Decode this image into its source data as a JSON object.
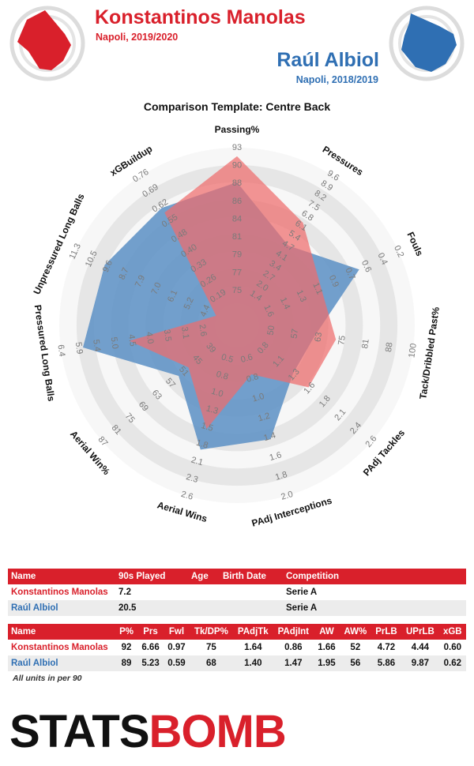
{
  "header": {
    "player1_name": "Konstantinos Manolas",
    "player1_sub": "Napoli, 2019/2020",
    "player2_name": "Raúl Albiol",
    "player2_sub": "Napoli, 2018/2019",
    "template_title": "Comparison Template: Centre Back"
  },
  "colors": {
    "player1": "#d9202b",
    "player2": "#2f6fb3",
    "fill1": "#ee6c6c",
    "fill2": "#5b8fc4"
  },
  "chart_data": {
    "type": "radar",
    "title": "Comparison Template: Centre Back",
    "axes": [
      {
        "label": "Passing%",
        "ticks": [
          "75",
          "77",
          "79",
          "81",
          "84",
          "86",
          "88",
          "90",
          "93"
        ]
      },
      {
        "label": "Pressures",
        "ticks": [
          "1.4",
          "2.0",
          "2.7",
          "3.4",
          "4.1",
          "4.7",
          "5.4",
          "6.1",
          "6.8",
          "7.5",
          "8.2",
          "8.9",
          "9.6"
        ]
      },
      {
        "label": "Fouls",
        "ticks": [
          "1.6",
          "1.4",
          "1.3",
          "1.1",
          "0.9",
          "0.7",
          "0.6",
          "0.4",
          "0.2"
        ]
      },
      {
        "label": "Tack/Dribbled Past%",
        "ticks": [
          "50",
          "57",
          "63",
          "75",
          "81",
          "88",
          "100"
        ]
      },
      {
        "label": "PAdj Tackles",
        "ticks": [
          "0.8",
          "1.1",
          "1.3",
          "1.6",
          "1.8",
          "2.1",
          "2.4",
          "2.6"
        ]
      },
      {
        "label": "PAdj Interceptions",
        "ticks": [
          "0.6",
          "0.8",
          "1.0",
          "1.2",
          "1.4",
          "1.6",
          "1.8",
          "2.0"
        ]
      },
      {
        "label": "Aerial Wins",
        "ticks": [
          "0.5",
          "0.8",
          "1.0",
          "1.3",
          "1.5",
          "1.8",
          "2.1",
          "2.3",
          "2.6"
        ]
      },
      {
        "label": "Aerial Win%",
        "ticks": [
          "39",
          "45",
          "51",
          "57",
          "63",
          "69",
          "75",
          "81",
          "87"
        ]
      },
      {
        "label": "Pressured Long Balls",
        "ticks": [
          "2.6",
          "3.1",
          "3.5",
          "4.0",
          "4.5",
          "5.0",
          "5.4",
          "5.9",
          "6.4"
        ]
      },
      {
        "label": "Unpressured Long Balls",
        "ticks": [
          "4.4",
          "5.2",
          "6.1",
          "7.0",
          "7.9",
          "8.7",
          "9.6",
          "10.5",
          "11.3"
        ]
      },
      {
        "label": "xGBuildup",
        "ticks": [
          "0.19",
          "0.26",
          "0.33",
          "0.40",
          "0.48",
          "0.55",
          "0.62",
          "0.69",
          "0.76"
        ]
      }
    ],
    "series": [
      {
        "name": "Konstantinos Manolas",
        "values": [
          92,
          6.66,
          0.97,
          75,
          1.64,
          0.86,
          1.66,
          52,
          4.72,
          4.44,
          0.6
        ]
      },
      {
        "name": "Raúl Albiol",
        "values": [
          89,
          5.23,
          0.59,
          68,
          1.4,
          1.47,
          1.95,
          56,
          5.86,
          9.87,
          0.62
        ]
      }
    ]
  },
  "info_table": {
    "headers": [
      "Name",
      "90s Played",
      "Age",
      "Birth Date",
      "Competition"
    ],
    "rows": [
      [
        "Konstantinos Manolas",
        "7.2",
        "",
        "",
        "Serie A"
      ],
      [
        "Raúl Albiol",
        "20.5",
        "",
        "",
        "Serie A"
      ]
    ]
  },
  "stats_table": {
    "headers": [
      "Name",
      "P%",
      "Prs",
      "Fwl",
      "Tk/DP%",
      "PAdjTk",
      "PAdjInt",
      "AW",
      "AW%",
      "PrLB",
      "UPrLB",
      "xGB"
    ],
    "rows": [
      [
        "Konstantinos Manolas",
        "92",
        "6.66",
        "0.97",
        "75",
        "1.64",
        "0.86",
        "1.66",
        "52",
        "4.72",
        "4.44",
        "0.60"
      ],
      [
        "Raúl Albiol",
        "89",
        "5.23",
        "0.59",
        "68",
        "1.40",
        "1.47",
        "1.95",
        "56",
        "5.86",
        "9.87",
        "0.62"
      ]
    ]
  },
  "footer": {
    "units_note": "All units in per 90",
    "logo_left": "STATS",
    "logo_right": "BOMB"
  }
}
